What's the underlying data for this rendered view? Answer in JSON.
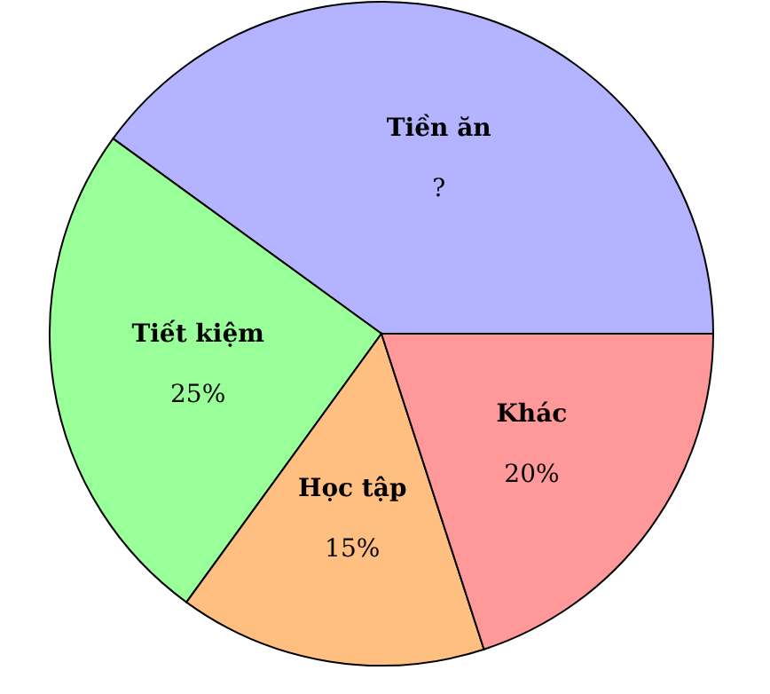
{
  "chart_data": {
    "type": "pie",
    "categories": [
      "Tiền ăn",
      "Tiết kiệm",
      "Học tập",
      "Khác"
    ],
    "values": [
      40,
      25,
      15,
      20
    ],
    "value_labels": [
      "?",
      "25%",
      "15%",
      "20%"
    ],
    "colors": [
      "#b3b3ff",
      "#99ff99",
      "#ffbf80",
      "#ff9999"
    ],
    "legend": false
  }
}
